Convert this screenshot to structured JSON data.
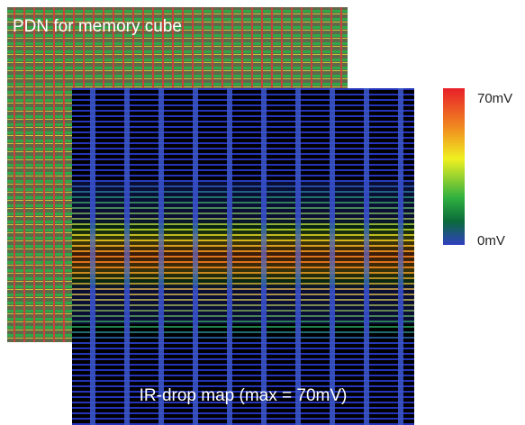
{
  "panels": [
    {
      "label": "PDN for memory cube"
    },
    {
      "label": "IR-drop map (max = 70mV)"
    }
  ],
  "colorbar": {
    "max_label": "70mV",
    "min_label": "0mV"
  }
}
